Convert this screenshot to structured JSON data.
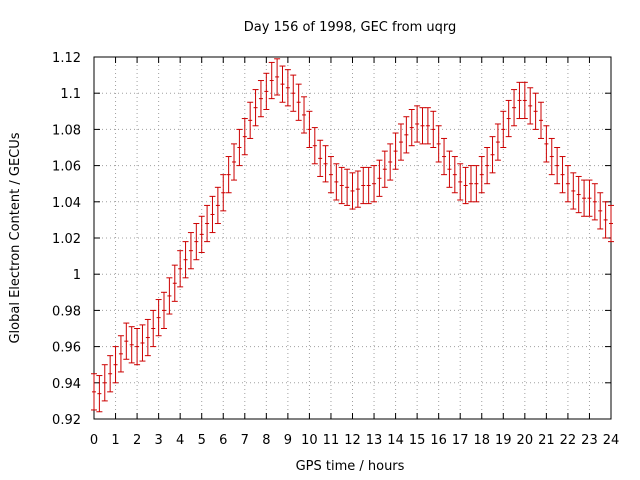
{
  "chart_data": {
    "type": "line",
    "title": "Day 156 of 1998, GEC from uqrg",
    "xlabel": "GPS time / hours",
    "ylabel": "Global Electron Content / GECUs",
    "xlim": [
      0,
      24
    ],
    "ylim": [
      0.92,
      1.12
    ],
    "x_ticks": [
      0,
      1,
      2,
      3,
      4,
      5,
      6,
      7,
      8,
      9,
      10,
      11,
      12,
      13,
      14,
      15,
      16,
      17,
      18,
      19,
      20,
      21,
      22,
      23,
      24
    ],
    "x_tick_labels": [
      "0",
      "1",
      "2",
      "3",
      "4",
      "5",
      "6",
      "7",
      "8",
      "9",
      "10",
      "11",
      "12",
      "13",
      "14",
      "15",
      "16",
      "17",
      "18",
      "19",
      "20",
      "21",
      "22",
      "23",
      "24"
    ],
    "y_ticks": [
      0.92,
      0.94,
      0.96,
      0.98,
      1.0,
      1.02,
      1.04,
      1.06,
      1.08,
      1.1,
      1.12
    ],
    "y_tick_labels": [
      "0.92",
      "0.94",
      "0.96",
      "0.98",
      "1",
      "1.02",
      "1.04",
      "1.06",
      "1.08",
      "1.1",
      "1.12"
    ],
    "grid": true,
    "series_color": "#cc0000",
    "error": 0.01,
    "x": [
      0,
      0.25,
      0.5,
      0.75,
      1,
      1.25,
      1.5,
      1.75,
      2,
      2.25,
      2.5,
      2.75,
      3,
      3.25,
      3.5,
      3.75,
      4,
      4.25,
      4.5,
      4.75,
      5,
      5.25,
      5.5,
      5.75,
      6,
      6.25,
      6.5,
      6.75,
      7,
      7.25,
      7.5,
      7.75,
      8,
      8.25,
      8.5,
      8.75,
      9,
      9.25,
      9.5,
      9.75,
      10,
      10.25,
      10.5,
      10.75,
      11,
      11.25,
      11.5,
      11.75,
      12,
      12.25,
      12.5,
      12.75,
      13,
      13.25,
      13.5,
      13.75,
      14,
      14.25,
      14.5,
      14.75,
      15,
      15.25,
      15.5,
      15.75,
      16,
      16.25,
      16.5,
      16.75,
      17,
      17.25,
      17.5,
      17.75,
      18,
      18.25,
      18.5,
      18.75,
      19,
      19.25,
      19.5,
      19.75,
      20,
      20.25,
      20.5,
      20.75,
      21,
      21.25,
      21.5,
      21.75,
      22,
      22.25,
      22.5,
      22.75,
      23,
      23.25,
      23.5,
      23.75,
      24
    ],
    "values": [
      0.935,
      0.934,
      0.94,
      0.945,
      0.95,
      0.956,
      0.963,
      0.961,
      0.96,
      0.962,
      0.965,
      0.97,
      0.976,
      0.98,
      0.988,
      0.995,
      1.003,
      1.008,
      1.013,
      1.018,
      1.022,
      1.028,
      1.033,
      1.038,
      1.045,
      1.055,
      1.062,
      1.07,
      1.076,
      1.085,
      1.092,
      1.097,
      1.101,
      1.107,
      1.109,
      1.105,
      1.103,
      1.1,
      1.095,
      1.088,
      1.08,
      1.071,
      1.064,
      1.061,
      1.055,
      1.051,
      1.049,
      1.048,
      1.046,
      1.047,
      1.049,
      1.049,
      1.05,
      1.053,
      1.058,
      1.062,
      1.068,
      1.073,
      1.077,
      1.081,
      1.083,
      1.082,
      1.082,
      1.08,
      1.072,
      1.065,
      1.058,
      1.055,
      1.051,
      1.049,
      1.05,
      1.05,
      1.055,
      1.06,
      1.066,
      1.073,
      1.08,
      1.086,
      1.092,
      1.096,
      1.096,
      1.093,
      1.09,
      1.085,
      1.072,
      1.065,
      1.06,
      1.055,
      1.05,
      1.046,
      1.044,
      1.042,
      1.042,
      1.04,
      1.035,
      1.03,
      1.028
    ]
  }
}
